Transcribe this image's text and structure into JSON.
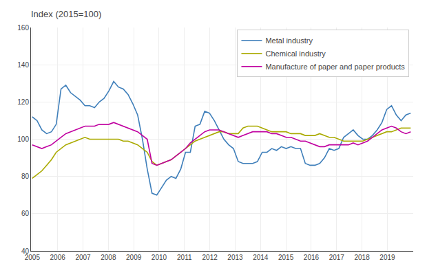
{
  "chart_data": {
    "type": "line",
    "title": "Index (2015=100)",
    "x": [
      2005,
      2005.1889,
      2005.3777,
      2005.5666,
      2005.7554,
      2005.9443,
      2006.1332,
      2006.322,
      2006.5109,
      2006.6997,
      2006.8886,
      2007.0775,
      2007.2663,
      2007.4552,
      2007.6441,
      2007.8329,
      2008.0218,
      2008.2106,
      2008.3995,
      2008.5884,
      2008.7772,
      2008.9661,
      2009.1549,
      2009.3438,
      2009.5327,
      2009.7215,
      2009.9104,
      2010.0992,
      2010.2881,
      2010.477,
      2010.6658,
      2010.8547,
      2011.0435,
      2011.2324,
      2011.4213,
      2011.6101,
      2011.799,
      2011.9878,
      2012.1767,
      2012.3656,
      2012.5544,
      2012.7433,
      2012.9322,
      2013.121,
      2013.3099,
      2013.4987,
      2013.6876,
      2013.8765,
      2014.0653,
      2014.2542,
      2014.443,
      2014.6319,
      2014.8208,
      2015.0096,
      2015.1985,
      2015.3873,
      2015.5762,
      2015.7651,
      2015.9539,
      2016.1428,
      2016.3316,
      2016.5205,
      2016.7094,
      2016.8982,
      2017.0871,
      2017.2759,
      2017.4648,
      2017.6537,
      2017.8425,
      2018.0314,
      2018.2203,
      2018.4091,
      2018.598,
      2018.7868,
      2018.9757,
      2019.1646,
      2019.3534,
      2019.5423,
      2019.7311,
      2019.92
    ],
    "series": [
      {
        "name": "Metal industry",
        "color": "#3f7fba",
        "values": [
          112,
          110,
          105,
          103,
          104,
          108,
          127,
          129,
          125,
          123,
          121,
          118,
          118,
          117,
          120,
          122,
          126,
          131,
          128,
          127,
          124,
          119,
          113,
          100,
          84,
          71,
          70,
          74,
          78,
          80,
          79,
          84,
          93,
          93,
          107,
          108,
          115,
          114,
          110,
          105,
          100,
          97,
          95,
          88,
          87,
          87,
          87,
          88,
          93,
          93,
          95,
          94,
          96,
          95,
          96,
          95,
          95,
          87,
          86,
          86,
          87,
          90,
          95,
          94,
          95,
          101,
          103,
          105,
          102,
          100,
          100,
          102,
          105,
          109,
          116,
          118,
          113,
          110,
          113,
          114
        ]
      },
      {
        "name": "Chemical industry",
        "color": "#aaaa00",
        "values": [
          79,
          81,
          83,
          86,
          89,
          93,
          95,
          97,
          98,
          99,
          100,
          101,
          100,
          100,
          100,
          100,
          100,
          100,
          100,
          99,
          99,
          98,
          97,
          95,
          93,
          88,
          86,
          87,
          88,
          89,
          91,
          93,
          95,
          97,
          99,
          100,
          101,
          102,
          103,
          104,
          104,
          103,
          103,
          103,
          106,
          107,
          107,
          107,
          106,
          105,
          104,
          104,
          104,
          104,
          103,
          103,
          103,
          102,
          102,
          102,
          103,
          102,
          101,
          101,
          100,
          99,
          99,
          99,
          99,
          99,
          100,
          101,
          102,
          103,
          104,
          104,
          105,
          106,
          106,
          106
        ]
      },
      {
        "name": "Manufacture of paper and paper products",
        "color": "#c000a0",
        "values": [
          97,
          96,
          95,
          96,
          97,
          99,
          101,
          103,
          104,
          105,
          106,
          107,
          107,
          107,
          108,
          108,
          108,
          109,
          108,
          107,
          106,
          105,
          104,
          102,
          100,
          87,
          86,
          87,
          88,
          89,
          91,
          93,
          95,
          98,
          100,
          102,
          104,
          105,
          105,
          105,
          104,
          103,
          102,
          101,
          102,
          103,
          104,
          104,
          104,
          104,
          103,
          103,
          102,
          101,
          101,
          100,
          99,
          99,
          98,
          97,
          96,
          96,
          97,
          97,
          97,
          97,
          97,
          98,
          97,
          98,
          99,
          101,
          103,
          105,
          106,
          107,
          106,
          104,
          103,
          104
        ]
      }
    ],
    "xlim": [
      2004.95,
      2020.02
    ],
    "xticks": [
      2005,
      2006,
      2007,
      2008,
      2009,
      2010,
      2011,
      2012,
      2013,
      2014,
      2015,
      2016,
      2017,
      2018,
      2019
    ],
    "ylim": [
      40,
      160
    ],
    "yticks": [
      40,
      60,
      80,
      100,
      120,
      140,
      160
    ],
    "grid": true,
    "legend": "upper right"
  }
}
